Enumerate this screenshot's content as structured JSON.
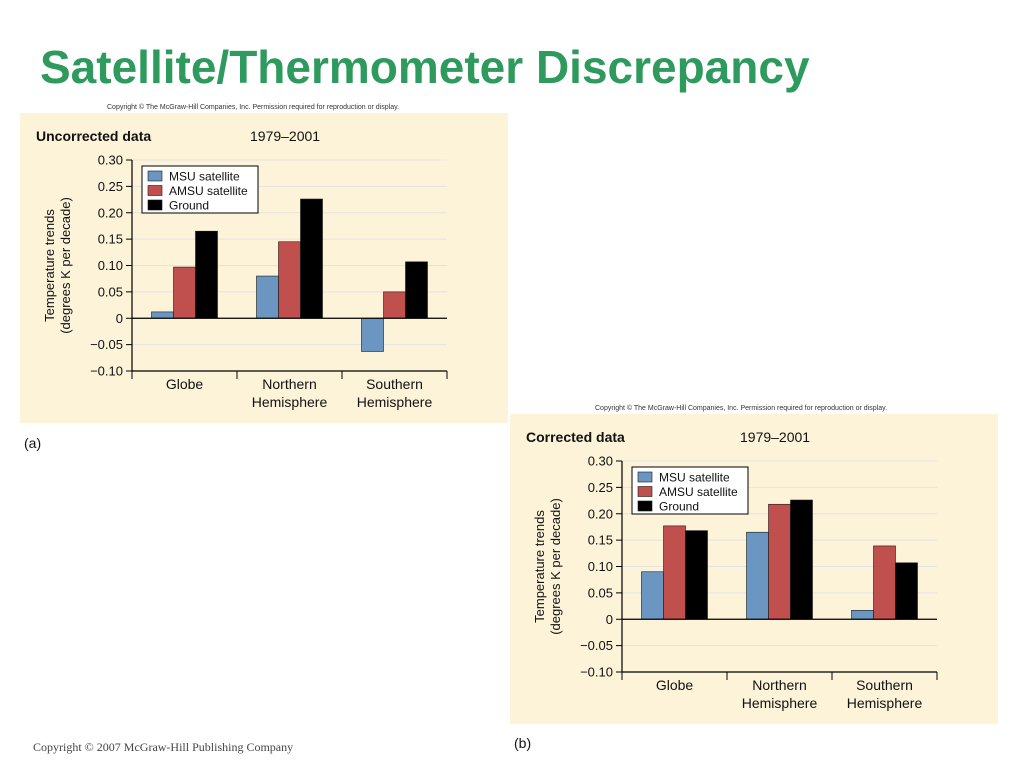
{
  "slide": {
    "title": "Satellite/Thermometer Discrepancy",
    "footer": "Copyright © 2007 McGraw-Hill Publishing Company",
    "title_color": "#2e9a5e"
  },
  "panels": [
    {
      "copyright": "Copyright © The McGraw-Hill Companies, Inc. Permission required for reproduction or display.",
      "label": "(a)"
    },
    {
      "copyright": "Copyright © The McGraw-Hill Companies, Inc. Permission required for reproduction or display.",
      "label": "(b)"
    }
  ],
  "colors": {
    "panel_bg": "#fcf3d9",
    "msu": "#6b96c2",
    "amsu": "#c0504d",
    "ground": "#000000"
  },
  "chart_data": [
    {
      "type": "bar",
      "title": "Uncorrected data",
      "subtitle": "1979–2001",
      "ylabel_lines": [
        "Temperature trends",
        "(degrees K per decade)"
      ],
      "ylim": [
        -0.1,
        0.3
      ],
      "yticks": [
        0.3,
        0.25,
        0.2,
        0.15,
        0.1,
        0.05,
        0,
        -0.05,
        -0.1
      ],
      "ytick_labels": [
        "0.30",
        "0.25",
        "0.20",
        "0.15",
        "0.10",
        "0.05",
        "0",
        "−0.05",
        "−0.10"
      ],
      "grid": true,
      "legend_position": "top-left",
      "categories": [
        [
          "Globe"
        ],
        [
          "Northern",
          "Hemisphere"
        ],
        [
          "Southern",
          "Hemisphere"
        ]
      ],
      "series": [
        {
          "name": "MSU satellite",
          "color": "#6b96c2",
          "values": [
            0.012,
            0.08,
            -0.063
          ]
        },
        {
          "name": "AMSU satellite",
          "color": "#c0504d",
          "values": [
            0.097,
            0.145,
            0.05
          ]
        },
        {
          "name": "Ground",
          "color": "#000000",
          "values": [
            0.165,
            0.226,
            0.107
          ]
        }
      ]
    },
    {
      "type": "bar",
      "title": "Corrected data",
      "subtitle": "1979–2001",
      "ylabel_lines": [
        "Temperature trends",
        "(degrees K per decade)"
      ],
      "ylim": [
        -0.1,
        0.3
      ],
      "yticks": [
        0.3,
        0.25,
        0.2,
        0.15,
        0.1,
        0.05,
        0,
        -0.05,
        -0.1
      ],
      "ytick_labels": [
        "0.30",
        "0.25",
        "0.20",
        "0.15",
        "0.10",
        "0.05",
        "0",
        "−0.05",
        "−0.10"
      ],
      "grid": true,
      "legend_position": "top-left",
      "categories": [
        [
          "Globe"
        ],
        [
          "Northern",
          "Hemisphere"
        ],
        [
          "Southern",
          "Hemisphere"
        ]
      ],
      "series": [
        {
          "name": "MSU satellite",
          "color": "#6b96c2",
          "values": [
            0.09,
            0.165,
            0.017
          ]
        },
        {
          "name": "AMSU satellite",
          "color": "#c0504d",
          "values": [
            0.177,
            0.218,
            0.139
          ]
        },
        {
          "name": "Ground",
          "color": "#000000",
          "values": [
            0.168,
            0.226,
            0.107
          ]
        }
      ]
    }
  ]
}
